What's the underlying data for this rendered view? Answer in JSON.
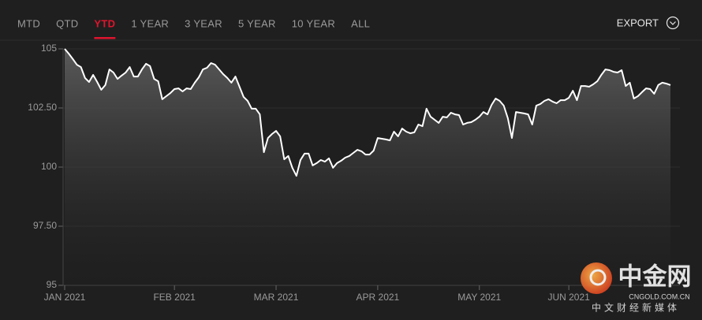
{
  "tabs": [
    "MTD",
    "QTD",
    "YTD",
    "1 YEAR",
    "3 YEAR",
    "5 YEAR",
    "10 YEAR",
    "ALL"
  ],
  "active_tab": 2,
  "export_label": "EXPORT",
  "watermark": {
    "brand": "中金网",
    "domain": "CNGOLD.COM.CN",
    "slogan": "中文财经新媒体"
  },
  "chart_data": {
    "type": "area",
    "color": "#ffffff",
    "grid": true,
    "ylim": [
      95,
      105
    ],
    "yticks": [
      95,
      {
        "value": 97.5,
        "label": "97.50"
      },
      100,
      {
        "value": 102.5,
        "label": "102.50"
      },
      105
    ],
    "categories": [
      "JAN 2021",
      null,
      null,
      null,
      null,
      null,
      null,
      null,
      null,
      null,
      null,
      null,
      null,
      null,
      null,
      null,
      null,
      null,
      null,
      null,
      null,
      null,
      null,
      null,
      null,
      null,
      null,
      "FEB 2021",
      null,
      null,
      null,
      null,
      null,
      null,
      null,
      null,
      null,
      null,
      null,
      null,
      null,
      null,
      null,
      null,
      null,
      null,
      null,
      null,
      null,
      null,
      null,
      null,
      "MAR 2021",
      null,
      null,
      null,
      null,
      null,
      null,
      null,
      null,
      null,
      null,
      null,
      null,
      null,
      null,
      null,
      null,
      null,
      null,
      null,
      null,
      null,
      null,
      null,
      null,
      "APR 2021",
      null,
      null,
      null,
      null,
      null,
      null,
      null,
      null,
      null,
      null,
      null,
      null,
      null,
      null,
      null,
      null,
      null,
      null,
      null,
      null,
      null,
      null,
      null,
      null,
      "MAY 2021",
      null,
      null,
      null,
      null,
      null,
      null,
      null,
      null,
      null,
      null,
      null,
      null,
      null,
      null,
      null,
      null,
      null,
      null,
      null,
      null,
      null,
      "JUN 2021",
      null,
      null,
      null,
      null,
      null,
      null,
      null,
      null,
      null,
      null,
      null,
      null,
      null,
      null,
      null,
      null,
      null,
      null,
      null,
      null,
      null,
      null,
      null,
      null,
      null
    ],
    "values": [
      105,
      104.8,
      104.57,
      104.33,
      104.23,
      103.77,
      103.6,
      103.9,
      103.6,
      103.27,
      103.47,
      104.13,
      104,
      103.73,
      103.87,
      104,
      104.23,
      103.83,
      103.83,
      104.13,
      104.37,
      104.27,
      103.73,
      103.63,
      102.87,
      103,
      103.13,
      103.3,
      103.33,
      103.2,
      103.33,
      103.3,
      103.57,
      103.8,
      104.13,
      104.2,
      104.4,
      104.33,
      104.13,
      103.93,
      103.77,
      103.57,
      103.83,
      103.4,
      102.97,
      102.8,
      102.47,
      102.47,
      102.23,
      100.63,
      101.23,
      101.4,
      101.53,
      101.3,
      100.33,
      100.47,
      99.97,
      99.63,
      100.3,
      100.57,
      100.57,
      100.07,
      100.17,
      100.3,
      100.23,
      100.37,
      99.97,
      100.17,
      100.27,
      100.4,
      100.47,
      100.6,
      100.73,
      100.67,
      100.53,
      100.53,
      100.7,
      101.23,
      101.2,
      101.17,
      101.13,
      101.5,
      101.3,
      101.63,
      101.5,
      101.43,
      101.47,
      101.8,
      101.73,
      102.47,
      102.13,
      102,
      101.87,
      102.13,
      102.1,
      102.3,
      102.23,
      102.2,
      101.8,
      101.87,
      101.9,
      102,
      102.13,
      102.33,
      102.23,
      102.63,
      102.9,
      102.8,
      102.6,
      102.07,
      101.23,
      102.33,
      102.3,
      102.27,
      102.23,
      101.8,
      102.6,
      102.67,
      102.8,
      102.87,
      102.77,
      102.7,
      102.83,
      102.83,
      102.93,
      103.23,
      102.83,
      103.43,
      103.43,
      103.4,
      103.5,
      103.63,
      103.9,
      104.13,
      104.1,
      104.03,
      104,
      104.1,
      103.43,
      103.57,
      102.9,
      103,
      103.17,
      103.33,
      103.3,
      103.1,
      103.47,
      103.57,
      103.53,
      103.47
    ]
  }
}
